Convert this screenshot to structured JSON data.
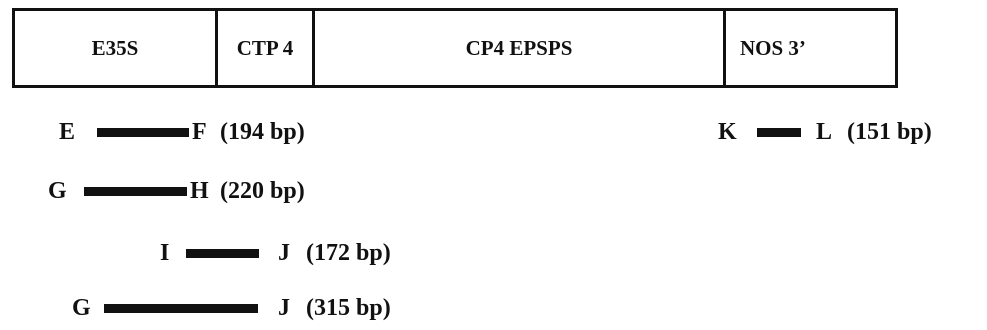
{
  "construct": {
    "segments": [
      {
        "label": "E35S"
      },
      {
        "label": "CTP 4"
      },
      {
        "label": "CP4 EPSPS"
      },
      {
        "label": "NOS 3’"
      }
    ]
  },
  "amplicons": [
    {
      "fwd": "E",
      "rev": "F",
      "size": "(194 bp)"
    },
    {
      "fwd": "G",
      "rev": "H",
      "size": "(220 bp)"
    },
    {
      "fwd": "I",
      "rev": "J",
      "size": "(172 bp)"
    },
    {
      "fwd": "G",
      "rev": "J",
      "size": "(315 bp)"
    },
    {
      "fwd": "K",
      "rev": "L",
      "size": "(151 bp)"
    }
  ]
}
